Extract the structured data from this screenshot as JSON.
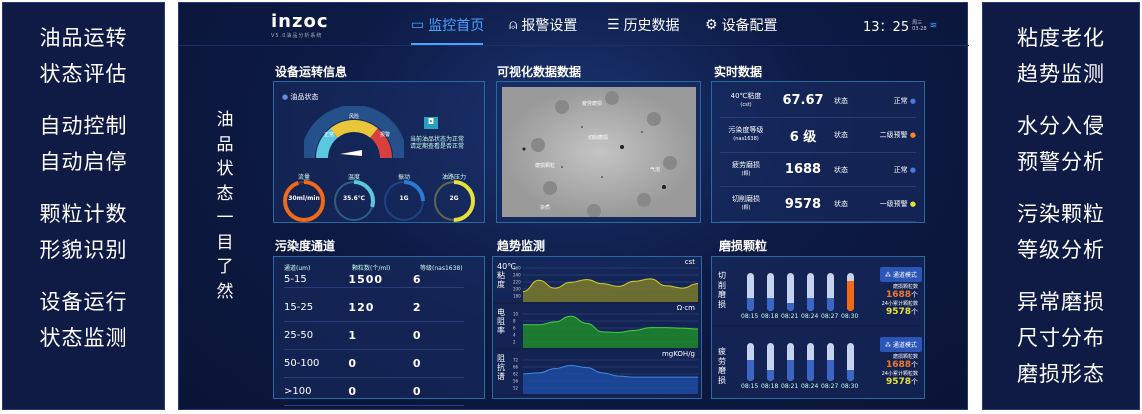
{
  "left_features": [
    [
      "油品运转",
      "状态评估"
    ],
    [
      "自动控制",
      "自动启停"
    ],
    [
      "颗粒计数",
      "形貌识别"
    ],
    [
      "设备运行",
      "状态监测"
    ]
  ],
  "right_features": [
    [
      "粘度老化",
      "趋势监测"
    ],
    [
      "水分入侵",
      "预警分析"
    ],
    [
      "污染颗粒",
      "等级分析"
    ],
    [
      "异常磨损",
      "尺寸分布",
      "磨损形态"
    ]
  ],
  "header": {
    "logo": "inzoc",
    "version": "V5.0油品分析系统",
    "nav": [
      {
        "label": "监控首页",
        "icon": "monitor-icon",
        "active": true
      },
      {
        "label": "报警设置",
        "icon": "alarm-icon"
      },
      {
        "label": "历史数据",
        "icon": "history-icon"
      },
      {
        "label": "设备配置",
        "icon": "gear-icon"
      }
    ],
    "time": "13：25",
    "weekday": "周三",
    "date": "03-28"
  },
  "slogan": "油品状态一目了然",
  "device": {
    "title": "设备运转信息",
    "status_label": "油品状态",
    "gauge_labels": [
      "正常",
      "风险",
      "报警"
    ],
    "status_text": [
      "当前油品状态为正常",
      "请定期查看是否正常"
    ],
    "rings": [
      {
        "label": "流量",
        "value": "30ml/min",
        "color": "#f06a1a",
        "fill": 0.95
      },
      {
        "label": "温度",
        "value": "35.6℃",
        "color": "#5bc8e0",
        "fill": 0.3
      },
      {
        "label": "振动",
        "value": "1G",
        "color": "#2a7ad8",
        "fill": 0.25
      },
      {
        "label": "油路压力",
        "value": "2G",
        "color": "#e8e03a",
        "fill": 0.5
      }
    ]
  },
  "visual": {
    "title": "可视化数据数据",
    "labels": [
      "疲劳磨损",
      "切削磨损",
      "磨损颗粒",
      "气泡",
      "杂质"
    ]
  },
  "realtime": {
    "title": "实时数据",
    "status_word": "状态",
    "rows": [
      {
        "name": "40℃粘度",
        "unit": "(cst)",
        "value": "67.67",
        "status": "正常",
        "dot": "#4a7ad8"
      },
      {
        "name": "污染度等级",
        "unit": "(nas1638)",
        "value": "6 级",
        "status": "二级预警",
        "dot": "#f08a2a"
      },
      {
        "name": "疲劳磨损",
        "unit": "(颗)",
        "value": "1688",
        "status": "正常",
        "dot": "#4a7ad8"
      },
      {
        "name": "切削磨损",
        "unit": "(颗)",
        "value": "9578",
        "status": "一级预警",
        "dot": "#e8e03a"
      }
    ]
  },
  "pollution": {
    "title": "污染度通道",
    "headers": [
      "通道(um)",
      "颗粒数(个/ml)",
      "等级(nas1638)"
    ],
    "rows": [
      [
        "5-15",
        "1500",
        "6"
      ],
      [
        "15-25",
        "120",
        "2"
      ],
      [
        "25-50",
        "1",
        "0"
      ],
      [
        "50-100",
        "0",
        "0"
      ],
      [
        ">100",
        "0",
        "0"
      ]
    ]
  },
  "trend": {
    "title": "趋势监测",
    "charts": [
      {
        "label": "40℃粘度",
        "unit": "cst",
        "ticks": [
          "260",
          "240",
          "220",
          "200",
          "180"
        ],
        "ylim": [
          170,
          270
        ],
        "color": "#d8d030",
        "fill": "#7a7a2a",
        "values": [
          195,
          228,
          205,
          222,
          230,
          218,
          210,
          225,
          232,
          212,
          205,
          218
        ]
      },
      {
        "label": "电阻率",
        "unit": "Ω·cm",
        "ticks": [
          "10",
          "8",
          "6",
          "4",
          "2"
        ],
        "ylim": [
          0,
          12
        ],
        "color": "#4ad040",
        "fill": "#1e8a2a",
        "values": [
          7.5,
          7.5,
          8.5,
          10.5,
          8,
          5,
          4.8,
          5.5,
          6.5,
          6.5,
          6.3,
          6
        ]
      },
      {
        "label": "阻抗谱",
        "unit": "mgKOH/g",
        "ticks": [
          "72",
          "66",
          "62",
          "56",
          "52"
        ],
        "ylim": [
          46,
          78
        ],
        "color": "#3a8ae0",
        "fill": "#1e4aa0",
        "values": [
          63,
          64,
          68,
          71,
          69,
          64,
          61,
          60,
          60,
          60,
          60,
          60
        ]
      }
    ]
  },
  "wear": {
    "title": "磨损颗粒",
    "mode_label": "通道模式",
    "count_label": "磨损颗粒数",
    "total_label": "24小累计颗粒数",
    "unit": "个",
    "groups": [
      {
        "label": "切削磨损",
        "times": [
          "08:15",
          "08:18",
          "08:21",
          "08:24",
          "08:27",
          "08:30"
        ],
        "levels": [
          0.35,
          0.35,
          0.22,
          0.35,
          0.35,
          0.8
        ],
        "count": "1688",
        "total": "9578"
      },
      {
        "label": "疲劳磨损",
        "times": [
          "08:15",
          "08:18",
          "08:21",
          "08:24",
          "08:27",
          "08:30"
        ],
        "levels": [
          0.55,
          0.3,
          0.55,
          0.55,
          0.55,
          0.3
        ],
        "count": "1688",
        "total": "9578"
      }
    ]
  }
}
